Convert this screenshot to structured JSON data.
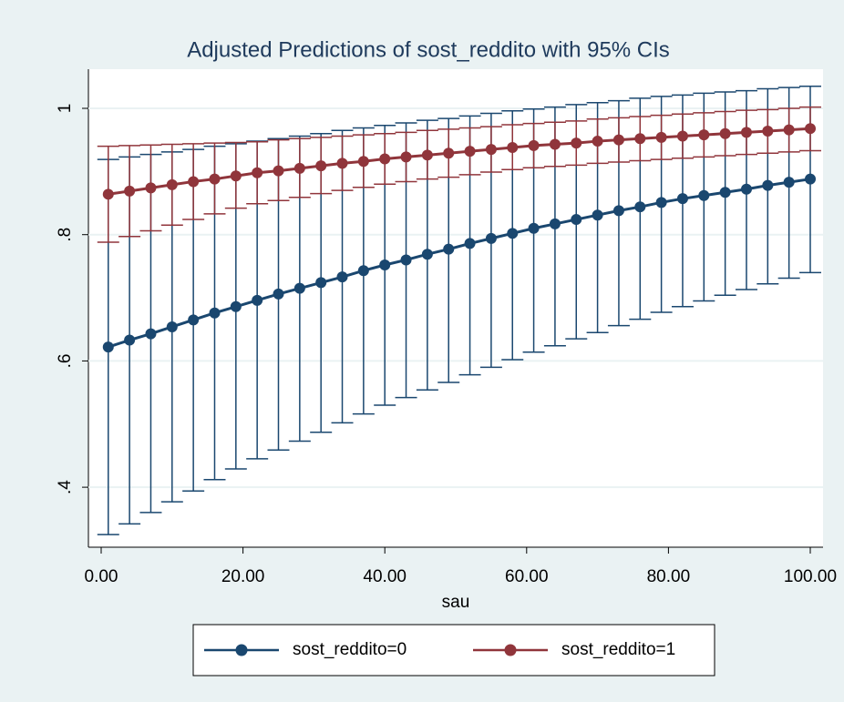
{
  "chart_data": {
    "type": "errorbar_line",
    "title": "Adjusted Predictions of sost_reddito with 95% CIs",
    "x_label": "sau",
    "x": [
      1,
      4,
      7,
      10,
      13,
      16,
      19,
      22,
      25,
      28,
      31,
      34,
      37,
      40,
      43,
      46,
      49,
      52,
      55,
      58,
      61,
      64,
      67,
      70,
      73,
      76,
      79,
      82,
      85,
      88,
      91,
      94,
      97,
      100
    ],
    "series": [
      {
        "name": "sost_reddito=0",
        "color": "#1a476f",
        "values": [
          0.622,
          0.633,
          0.643,
          0.654,
          0.665,
          0.676,
          0.686,
          0.696,
          0.706,
          0.715,
          0.724,
          0.733,
          0.743,
          0.752,
          0.76,
          0.769,
          0.777,
          0.786,
          0.794,
          0.802,
          0.81,
          0.817,
          0.824,
          0.831,
          0.838,
          0.844,
          0.851,
          0.857,
          0.862,
          0.867,
          0.872,
          0.878,
          0.883,
          0.888
        ],
        "lower": [
          0.325,
          0.342,
          0.36,
          0.377,
          0.394,
          0.412,
          0.429,
          0.445,
          0.459,
          0.473,
          0.487,
          0.502,
          0.516,
          0.53,
          0.542,
          0.554,
          0.566,
          0.578,
          0.59,
          0.602,
          0.614,
          0.624,
          0.635,
          0.645,
          0.656,
          0.666,
          0.677,
          0.686,
          0.695,
          0.704,
          0.713,
          0.722,
          0.731,
          0.74
        ],
        "upper": [
          0.919,
          0.923,
          0.927,
          0.931,
          0.935,
          0.94,
          0.944,
          0.948,
          0.952,
          0.956,
          0.96,
          0.965,
          0.969,
          0.973,
          0.977,
          0.981,
          0.984,
          0.988,
          0.992,
          0.996,
          0.999,
          1.002,
          1.006,
          1.009,
          1.012,
          1.016,
          1.019,
          1.021,
          1.024,
          1.026,
          1.028,
          1.031,
          1.033,
          1.035
        ]
      },
      {
        "name": "sost_reddito=1",
        "color": "#90353b",
        "values": [
          0.864,
          0.869,
          0.874,
          0.879,
          0.884,
          0.888,
          0.893,
          0.898,
          0.901,
          0.905,
          0.909,
          0.913,
          0.916,
          0.92,
          0.923,
          0.926,
          0.929,
          0.932,
          0.935,
          0.938,
          0.941,
          0.943,
          0.945,
          0.948,
          0.95,
          0.952,
          0.954,
          0.956,
          0.958,
          0.96,
          0.962,
          0.964,
          0.966,
          0.968
        ],
        "lower": [
          0.788,
          0.797,
          0.806,
          0.815,
          0.824,
          0.833,
          0.842,
          0.849,
          0.854,
          0.859,
          0.865,
          0.87,
          0.875,
          0.88,
          0.884,
          0.888,
          0.891,
          0.895,
          0.899,
          0.903,
          0.906,
          0.908,
          0.91,
          0.913,
          0.915,
          0.917,
          0.919,
          0.921,
          0.923,
          0.925,
          0.927,
          0.929,
          0.931,
          0.933
        ],
        "upper": [
          0.94,
          0.941,
          0.942,
          0.943,
          0.944,
          0.945,
          0.946,
          0.947,
          0.95,
          0.952,
          0.954,
          0.956,
          0.958,
          0.96,
          0.962,
          0.965,
          0.967,
          0.969,
          0.971,
          0.974,
          0.976,
          0.978,
          0.98,
          0.983,
          0.985,
          0.987,
          0.989,
          0.991,
          0.993,
          0.995,
          0.997,
          0.998,
          1.0,
          1.002
        ]
      }
    ],
    "xlim": [
      -1.8,
      101.8
    ],
    "xticks": [
      {
        "value": 0,
        "label": "0.00"
      },
      {
        "value": 20,
        "label": "20.00"
      },
      {
        "value": 40,
        "label": "40.00"
      },
      {
        "value": 60,
        "label": "60.00"
      },
      {
        "value": 80,
        "label": "80.00"
      },
      {
        "value": 100,
        "label": "100.00"
      }
    ],
    "ylim": [
      0.305,
      1.062
    ],
    "yticks": [
      {
        "value": 0.4,
        "label": ".4"
      },
      {
        "value": 0.6,
        "label": ".6"
      },
      {
        "value": 0.8,
        "label": ".8"
      },
      1
    ],
    "grid": true
  }
}
